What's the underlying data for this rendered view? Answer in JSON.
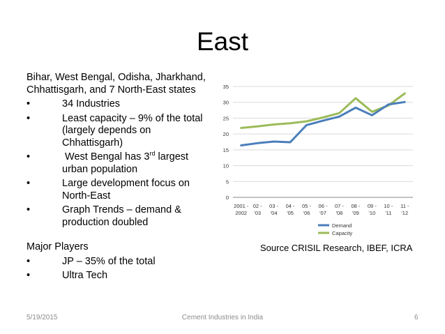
{
  "slide": {
    "title": "East",
    "intro": "Bihar, West Bengal, Odisha, Jharkhand, Chhattisgarh, and 7 North-East states",
    "bullet_char": "•",
    "bullets": [
      {
        "text": "34 Industries"
      },
      {
        "text": "Least capacity – 9% of the total (largely depends on Chhattisgarh)"
      },
      {
        "pre": "West Bengal has 3",
        "sup": "rd",
        "post": " largest urban population"
      },
      {
        "text": "Large development focus on North-East"
      },
      {
        "text": "Graph Trends – demand & production doubled"
      }
    ],
    "players_heading": "Major Players",
    "players": [
      {
        "text": "JP – 35% of the total"
      },
      {
        "text": "Ultra Tech"
      }
    ],
    "source": "Source CRISIL Research, IBEF, ICRA"
  },
  "footer": {
    "date": "5/19/2015",
    "center": "Cement Industries in India",
    "page": "6"
  },
  "chart_data": {
    "type": "line",
    "title": "",
    "xlabel": "",
    "ylabel": "",
    "categories": [
      [
        "2001 -",
        "2002"
      ],
      [
        "02 -",
        "'03"
      ],
      [
        "03 -",
        "'04"
      ],
      [
        "04 -",
        "'05"
      ],
      [
        "05 -",
        "'06"
      ],
      [
        "06 -",
        "'07"
      ],
      [
        "07 -",
        "'08"
      ],
      [
        "08 -",
        "'09"
      ],
      [
        "09 -",
        "'10"
      ],
      [
        "10 -",
        "'11"
      ],
      [
        "11 -",
        "'12"
      ]
    ],
    "ylim": [
      0,
      35
    ],
    "yticks": [
      0,
      5,
      10,
      15,
      20,
      25,
      30,
      35
    ],
    "grid": true,
    "legend_position": "bottom",
    "series": [
      {
        "name": "Demand",
        "color": "#4a7ebb",
        "values": [
          16.4,
          17.1,
          17.6,
          17.4,
          22.8,
          24.2,
          25.5,
          28.3,
          25.9,
          29.3,
          30.1
        ]
      },
      {
        "name": "Capacity",
        "color": "#9bbb59",
        "values": [
          21.9,
          22.4,
          23.0,
          23.4,
          24.0,
          25.2,
          26.6,
          31.3,
          27.0,
          29.0,
          32.8
        ]
      }
    ]
  }
}
